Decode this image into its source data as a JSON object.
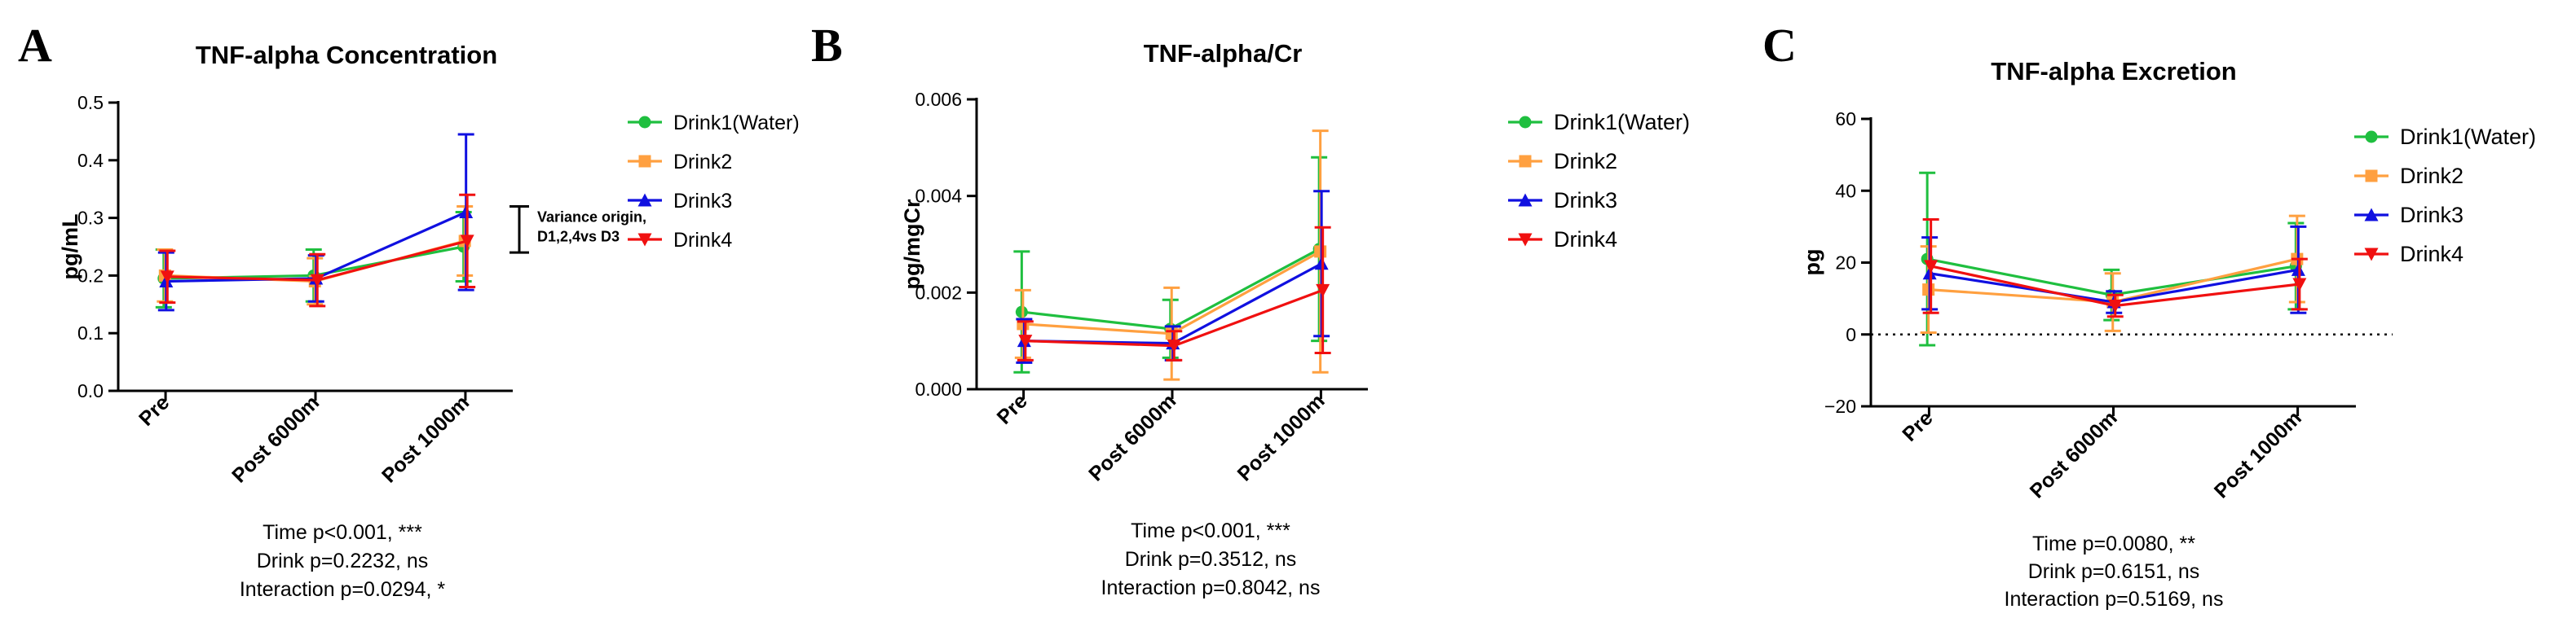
{
  "chart_data": [
    {
      "type": "line",
      "panel_label": "A",
      "title": "TNF-alpha Concentration",
      "xlabel": "",
      "ylabel": "pg/mL",
      "ylim": [
        0,
        0.5
      ],
      "yticks": [
        "0.0",
        "0.1",
        "0.2",
        "0.3",
        "0.4",
        "0.5"
      ],
      "categories": [
        "Pre",
        "Post 6000m",
        "Post 1000m"
      ],
      "series": [
        {
          "name": "Drink1(Water)",
          "color": "#1fbf3f",
          "marker": "circle",
          "values": [
            0.195,
            0.2,
            0.25
          ],
          "err": [
            0.05,
            0.045,
            0.06
          ]
        },
        {
          "name": "Drink2",
          "color": "#ffa040",
          "marker": "square",
          "values": [
            0.2,
            0.19,
            0.26
          ],
          "err": [
            0.045,
            0.04,
            0.06
          ]
        },
        {
          "name": "Drink3",
          "color": "#1010e0",
          "marker": "triangle-up",
          "values": [
            0.19,
            0.195,
            0.31
          ],
          "err": [
            0.05,
            0.04,
            0.135
          ]
        },
        {
          "name": "Drink4",
          "color": "#f01010",
          "marker": "triangle-down",
          "values": [
            0.198,
            0.192,
            0.26
          ],
          "err": [
            0.045,
            0.045,
            0.08
          ]
        }
      ],
      "annotation": {
        "line1": "Variance origin,",
        "line2": "D1,2,4vs D3"
      },
      "stats": [
        "Time p<0.001, ***",
        "Drink p=0.2232, ns",
        "Interaction p=0.0294, *"
      ]
    },
    {
      "type": "line",
      "panel_label": "B",
      "title": "TNF-alpha/Cr",
      "xlabel": "",
      "ylabel": "pg/mgCr",
      "ylim": [
        0,
        0.006
      ],
      "yticks": [
        "0.000",
        "0.002",
        "0.004",
        "0.006"
      ],
      "categories": [
        "Pre",
        "Post 6000m",
        "Post 1000m"
      ],
      "series": [
        {
          "name": "Drink1(Water)",
          "color": "#1fbf3f",
          "marker": "circle",
          "values": [
            0.0016,
            0.00125,
            0.0029
          ],
          "err": [
            0.00125,
            0.0006,
            0.0019
          ]
        },
        {
          "name": "Drink2",
          "color": "#ffa040",
          "marker": "square",
          "values": [
            0.00135,
            0.00115,
            0.00285
          ],
          "err": [
            0.0007,
            0.00095,
            0.0025
          ]
        },
        {
          "name": "Drink3",
          "color": "#1010e0",
          "marker": "triangle-up",
          "values": [
            0.001,
            0.00095,
            0.0026
          ],
          "err": [
            0.00045,
            0.00035,
            0.0015
          ]
        },
        {
          "name": "Drink4",
          "color": "#f01010",
          "marker": "triangle-down",
          "values": [
            0.001,
            0.0009,
            0.00205
          ],
          "err": [
            0.0004,
            0.0003,
            0.0013
          ]
        }
      ],
      "stats": [
        "Time p<0.001, ***",
        "Drink p=0.3512, ns",
        "Interaction p=0.8042, ns"
      ]
    },
    {
      "type": "line",
      "panel_label": "C",
      "title": "TNF-alpha Excretion",
      "xlabel": "",
      "ylabel": "pg",
      "ylim": [
        -20,
        60
      ],
      "yticks": [
        "−20",
        "0",
        "20",
        "40",
        "60"
      ],
      "categories": [
        "Pre",
        "Post 6000m",
        "Post 1000m"
      ],
      "zero_line": true,
      "series": [
        {
          "name": "Drink1(Water)",
          "color": "#1fbf3f",
          "marker": "circle",
          "values": [
            21,
            11,
            19
          ],
          "err": [
            24,
            7,
            12
          ]
        },
        {
          "name": "Drink2",
          "color": "#ffa040",
          "marker": "square",
          "values": [
            12.5,
            9,
            21
          ],
          "err": [
            12,
            8,
            12
          ]
        },
        {
          "name": "Drink3",
          "color": "#1010e0",
          "marker": "triangle-up",
          "values": [
            17,
            9,
            18
          ],
          "err": [
            10,
            3,
            12
          ]
        },
        {
          "name": "Drink4",
          "color": "#f01010",
          "marker": "triangle-down",
          "values": [
            19,
            8,
            14
          ],
          "err": [
            13,
            3,
            7
          ]
        }
      ],
      "stats": [
        "Time p=0.0080, **",
        "Drink p=0.6151, ns",
        "Interaction p=0.5169, ns"
      ]
    }
  ]
}
